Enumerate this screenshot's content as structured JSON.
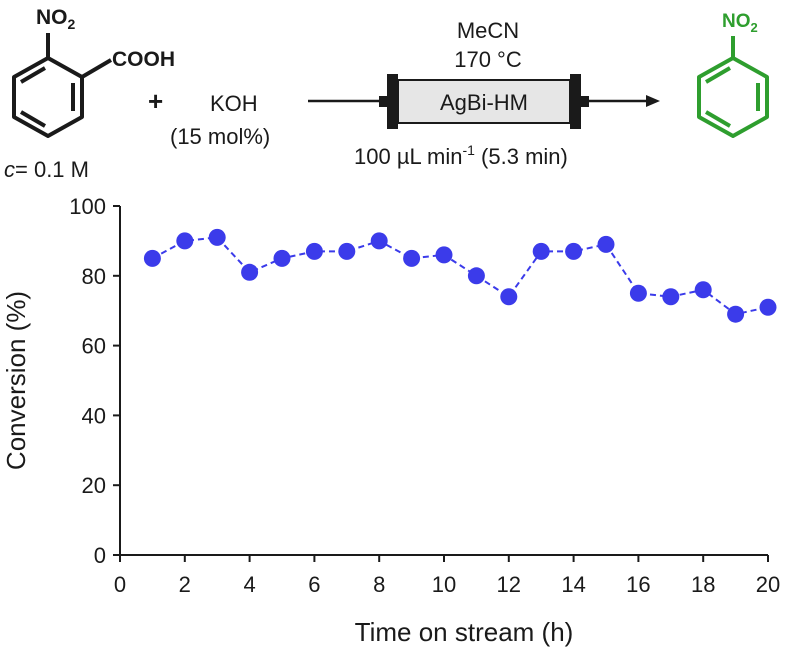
{
  "scheme": {
    "reactant_substituent_top": "NO",
    "reactant_substituent_top_sub": "2",
    "reactant_substituent_side": "COOH",
    "concentration_italic": "c",
    "concentration_rest": "= 0.1 M",
    "plus": "+",
    "reagent": "KOH",
    "reagent_amount": "(15 mol%)",
    "solvent": "MeCN",
    "temperature": "170 °C",
    "catalyst": "AgBi-HM",
    "flow_rate_main": "100 µL min",
    "flow_rate_exp": "-1",
    "flow_rate_time": " (5.3 min)",
    "product_substituent": "NO",
    "product_substituent_sub": "2",
    "product_color": "#2e9e2e"
  },
  "chart_data": {
    "type": "scatter",
    "xlabel": "Time on stream (h)",
    "ylabel": "Conversion (%)",
    "xlim": [
      0,
      20
    ],
    "ylim": [
      0,
      100
    ],
    "xticks": [
      0,
      2,
      4,
      6,
      8,
      10,
      12,
      14,
      16,
      18,
      20
    ],
    "yticks": [
      0,
      20,
      40,
      60,
      80,
      100
    ],
    "marker_color": "#3b3bea",
    "line_style": "dashed",
    "grid": false,
    "legend": "none",
    "series": [
      {
        "x": [
          1,
          2,
          3,
          4,
          5,
          6,
          7,
          8,
          9,
          10,
          11,
          12,
          13,
          14,
          15,
          16,
          17,
          18,
          19,
          20
        ],
        "y": [
          85,
          90,
          91,
          81,
          85,
          87,
          87,
          90,
          85,
          86,
          80,
          74,
          87,
          87,
          89,
          75,
          74,
          76,
          69,
          71
        ]
      }
    ]
  }
}
